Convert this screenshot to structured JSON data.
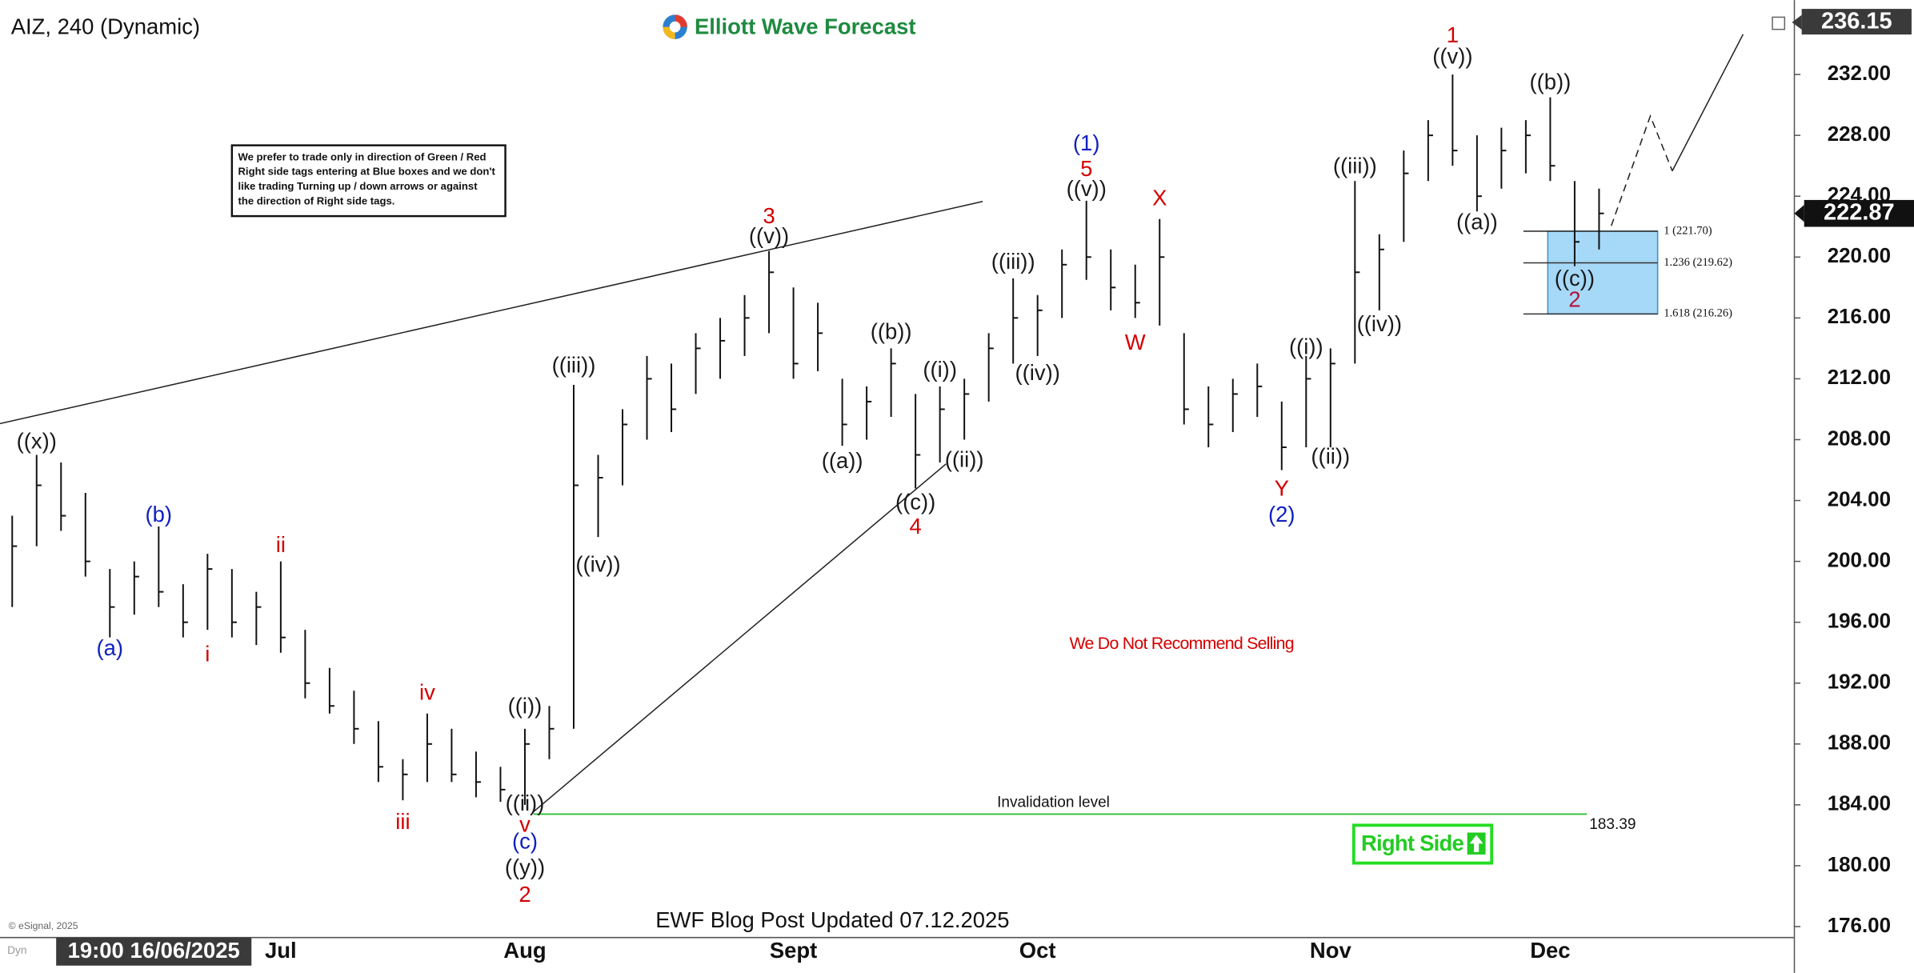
{
  "chart_data": {
    "type": "ohlc",
    "title": "AIZ, 240 (Dynamic)",
    "brand": "Elliott Wave Forecast",
    "note": [
      "We prefer to trade only in direction of Green / Red",
      "Right side tags entering at Blue boxes and we don't",
      "like trading Turning up / down arrows or against",
      "the direction of Right side tags."
    ],
    "recommendation": "We Do Not Recommend Selling",
    "right_side": "Right Side",
    "footer": "EWF Blog Post Updated 07.12.2025",
    "copyright": "© eSignal, 2025",
    "cursor_time": "19:00 16/06/2025",
    "cursor_tag": "Dyn",
    "categories": [
      null,
      null,
      null,
      null,
      null,
      null,
      null,
      null,
      null,
      null,
      null,
      "Jul",
      null,
      null,
      null,
      null,
      null,
      null,
      null,
      null,
      null,
      "Aug",
      null,
      null,
      null,
      null,
      null,
      null,
      null,
      null,
      null,
      null,
      "Sept",
      null,
      null,
      null,
      null,
      null,
      null,
      null,
      null,
      null,
      "Oct",
      null,
      null,
      null,
      null,
      null,
      null,
      null,
      null,
      null,
      null,
      null,
      "Nov",
      null,
      null,
      null,
      null,
      null,
      null,
      null,
      null,
      "Dec",
      null,
      null
    ],
    "high": [
      203,
      207,
      206.5,
      204.5,
      199.5,
      200,
      202.3,
      198.5,
      200.5,
      199.5,
      198,
      200,
      195.5,
      193,
      191.5,
      189.5,
      187,
      190,
      189,
      187.5,
      186.5,
      189,
      190.5,
      211.6,
      207,
      210,
      213.5,
      213,
      215,
      216,
      217.5,
      220.4,
      218,
      217,
      212,
      211.5,
      214,
      211,
      211.5,
      212,
      215,
      218.6,
      217.5,
      220.5,
      223.7,
      220.5,
      219.5,
      222.5,
      215,
      211.5,
      212,
      213,
      210.5,
      213.5,
      214,
      225,
      221.5,
      227,
      229,
      232,
      228,
      228.5,
      229,
      230.5,
      225,
      224.5
    ],
    "low": [
      197,
      201,
      202,
      199,
      195,
      196.5,
      197,
      195,
      195.5,
      195,
      194.5,
      194,
      191,
      190,
      188,
      185.5,
      184.3,
      185.5,
      185.5,
      184.5,
      184.2,
      184,
      187,
      189,
      201.6,
      205,
      208,
      208.5,
      211,
      212,
      213.5,
      215,
      212,
      212.5,
      207.6,
      208,
      209.5,
      204.8,
      206.5,
      208,
      210.5,
      213,
      213.5,
      216,
      218.5,
      216.5,
      216,
      215.5,
      209,
      207.5,
      208.5,
      209.5,
      206,
      207.5,
      207.5,
      213,
      216.5,
      221,
      225,
      226,
      223,
      224.5,
      225.5,
      225,
      219.4,
      220.5
    ],
    "close": [
      201,
      205,
      203,
      200,
      197,
      199,
      198,
      196,
      199.5,
      196,
      197,
      195,
      192,
      190.5,
      189,
      186.5,
      186,
      188,
      186,
      185.5,
      185,
      188,
      189,
      205,
      205.5,
      209,
      212,
      210,
      214,
      214.5,
      216,
      219,
      213,
      215,
      209,
      210.5,
      213,
      207,
      210,
      211,
      214,
      216,
      216.5,
      219.5,
      220,
      218,
      217,
      220,
      210,
      209,
      211,
      211.5,
      207.5,
      212,
      213,
      219,
      220.5,
      225.5,
      228,
      227,
      224,
      227,
      228,
      226,
      221,
      222.87
    ],
    "color": "#111111",
    "ylim": [
      175.28,
      236.89
    ],
    "yticks": [
      {
        "value": 176,
        "label": "176.00"
      },
      {
        "value": 180,
        "label": "180.00"
      },
      {
        "value": 184,
        "label": "184.00"
      },
      {
        "value": 188,
        "label": "188.00"
      },
      {
        "value": 192,
        "label": "192.00"
      },
      {
        "value": 196,
        "label": "196.00"
      },
      {
        "value": 200,
        "label": "200.00"
      },
      {
        "value": 204,
        "label": "204.00"
      },
      {
        "value": 208,
        "label": "208.00"
      },
      {
        "value": 212,
        "label": "212.00"
      },
      {
        "value": 216,
        "label": "216.00"
      },
      {
        "value": 220,
        "label": "220.00"
      },
      {
        "value": 224,
        "label": "224.00"
      },
      {
        "value": 228,
        "label": "228.00"
      },
      {
        "value": 232,
        "label": "232.00"
      }
    ],
    "axis_high": 236.15,
    "last_price": 222.87,
    "fib_levels": [
      {
        "value": 221.7,
        "label": "1 (221.70)"
      },
      {
        "value": 219.62,
        "label": "1.236 (219.62)"
      },
      {
        "value": 216.26,
        "label": "1.618 (216.26)"
      }
    ],
    "invalidation": {
      "label": "Invalidation level",
      "value": 183.39
    },
    "annotations": [
      {
        "text": "((x))",
        "at": 1,
        "y": 207.8,
        "color": "#1a1a1a"
      },
      {
        "text": "(b)",
        "at": 6,
        "y": 203.0,
        "color": "#1020c0"
      },
      {
        "text": "(a)",
        "at": 4,
        "y": 194.2,
        "color": "#1020c0"
      },
      {
        "text": "i",
        "at": 8,
        "y": 193.8,
        "color": "#d40000"
      },
      {
        "text": "ii",
        "at": 11,
        "y": 201.0,
        "color": "#d40000"
      },
      {
        "text": "iv",
        "at": 17,
        "y": 191.3,
        "color": "#d40000"
      },
      {
        "text": "iii",
        "at": 16,
        "y": 182.8,
        "color": "#d40000"
      },
      {
        "text": "((i))",
        "at": 21,
        "y": 190.4,
        "color": "#1a1a1a"
      },
      {
        "text": "((ii))",
        "at": 21,
        "y": 184.0,
        "color": "#1a1a1a"
      },
      {
        "text": "v",
        "at": 21,
        "y": 182.6,
        "color": "#d40000"
      },
      {
        "text": "(c)",
        "at": 21,
        "y": 181.5,
        "color": "#1020c0"
      },
      {
        "text": "((y))",
        "at": 21,
        "y": 179.8,
        "color": "#1a1a1a"
      },
      {
        "text": "2",
        "at": 21,
        "y": 178.0,
        "color": "#d40000"
      },
      {
        "text": "((iii))",
        "at": 23,
        "y": 212.8,
        "color": "#1a1a1a"
      },
      {
        "text": "((iv))",
        "at": 24,
        "y": 199.7,
        "color": "#1a1a1a"
      },
      {
        "text": "3",
        "at": 31,
        "y": 222.6,
        "color": "#d40000"
      },
      {
        "text": "((v))",
        "at": 31,
        "y": 221.3,
        "color": "#1a1a1a"
      },
      {
        "text": "((a))",
        "at": 34,
        "y": 206.5,
        "color": "#1a1a1a"
      },
      {
        "text": "((b))",
        "at": 36,
        "y": 215.0,
        "color": "#1a1a1a"
      },
      {
        "text": "((i))",
        "at": 38,
        "y": 212.5,
        "color": "#1a1a1a"
      },
      {
        "text": "((ii))",
        "at": 39,
        "y": 206.6,
        "color": "#1a1a1a"
      },
      {
        "text": "((c))",
        "at": 37,
        "y": 203.8,
        "color": "#1a1a1a"
      },
      {
        "text": "4",
        "at": 37,
        "y": 202.2,
        "color": "#d40000"
      },
      {
        "text": "((iii))",
        "at": 41,
        "y": 219.6,
        "color": "#1a1a1a"
      },
      {
        "text": "((iv))",
        "at": 42,
        "y": 212.3,
        "color": "#1a1a1a"
      },
      {
        "text": "(1)",
        "at": 44,
        "y": 227.4,
        "color": "#1020c0"
      },
      {
        "text": "5",
        "at": 44,
        "y": 225.7,
        "color": "#d40000"
      },
      {
        "text": "((v))",
        "at": 44,
        "y": 224.4,
        "color": "#1a1a1a"
      },
      {
        "text": "X",
        "at": 47,
        "y": 223.8,
        "color": "#d40000"
      },
      {
        "text": "W",
        "at": 46,
        "y": 214.3,
        "color": "#d40000"
      },
      {
        "text": "Y",
        "at": 52,
        "y": 204.7,
        "color": "#d40000"
      },
      {
        "text": "(2)",
        "at": 52,
        "y": 203.0,
        "color": "#1020c0"
      },
      {
        "text": "((i))",
        "at": 53,
        "y": 214.0,
        "color": "#1a1a1a"
      },
      {
        "text": "((ii))",
        "at": 54,
        "y": 206.8,
        "color": "#1a1a1a"
      },
      {
        "text": "((iii))",
        "at": 55,
        "y": 225.9,
        "color": "#1a1a1a"
      },
      {
        "text": "((iv))",
        "at": 56,
        "y": 215.5,
        "color": "#1a1a1a"
      },
      {
        "text": "1",
        "at": 59,
        "y": 234.5,
        "color": "#d40000"
      },
      {
        "text": "((v))",
        "at": 59,
        "y": 233.1,
        "color": "#1a1a1a"
      },
      {
        "text": "((a))",
        "at": 60,
        "y": 222.2,
        "color": "#1a1a1a"
      },
      {
        "text": "((b))",
        "at": 63,
        "y": 231.4,
        "color": "#1a1a1a"
      },
      {
        "text": "((c))",
        "at": 64,
        "y": 218.5,
        "color": "#1a1a1a"
      },
      {
        "text": "2",
        "at": 64,
        "y": 217.1,
        "color": "#b3123a"
      }
    ]
  }
}
